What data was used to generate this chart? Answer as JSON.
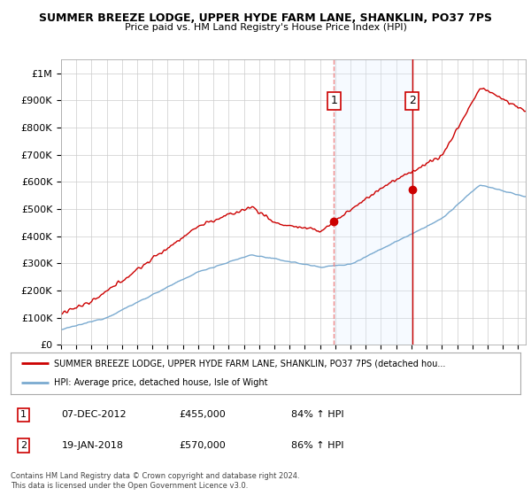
{
  "title1": "SUMMER BREEZE LODGE, UPPER HYDE FARM LANE, SHANKLIN, PO37 7PS",
  "title2": "Price paid vs. HM Land Registry's House Price Index (HPI)",
  "ylim": [
    0,
    1050000
  ],
  "yticks": [
    0,
    100000,
    200000,
    300000,
    400000,
    500000,
    600000,
    700000,
    800000,
    900000,
    1000000
  ],
  "ytick_labels": [
    "£0",
    "£100K",
    "£200K",
    "£300K",
    "£400K",
    "£500K",
    "£600K",
    "£700K",
    "£800K",
    "£900K",
    "£1M"
  ],
  "xmin": 1995.0,
  "xmax": 2025.5,
  "hpi_color": "#7aaad0",
  "price_color": "#cc0000",
  "shade_color": "#ddeeff",
  "transaction1_x": 2012.92,
  "transaction1_y": 455000,
  "transaction2_x": 2018.05,
  "transaction2_y": 570000,
  "legend_line1": "SUMMER BREEZE LODGE, UPPER HYDE FARM LANE, SHANKLIN, PO37 7PS (detached hou...",
  "legend_line2": "HPI: Average price, detached house, Isle of Wight",
  "table_row1": [
    "1",
    "07-DEC-2012",
    "£455,000",
    "84% ↑ HPI"
  ],
  "table_row2": [
    "2",
    "19-JAN-2018",
    "£570,000",
    "86% ↑ HPI"
  ],
  "footnote": "Contains HM Land Registry data © Crown copyright and database right 2024.\nThis data is licensed under the Open Government Licence v3.0.",
  "bg_color": "#ffffff",
  "grid_color": "#cccccc"
}
